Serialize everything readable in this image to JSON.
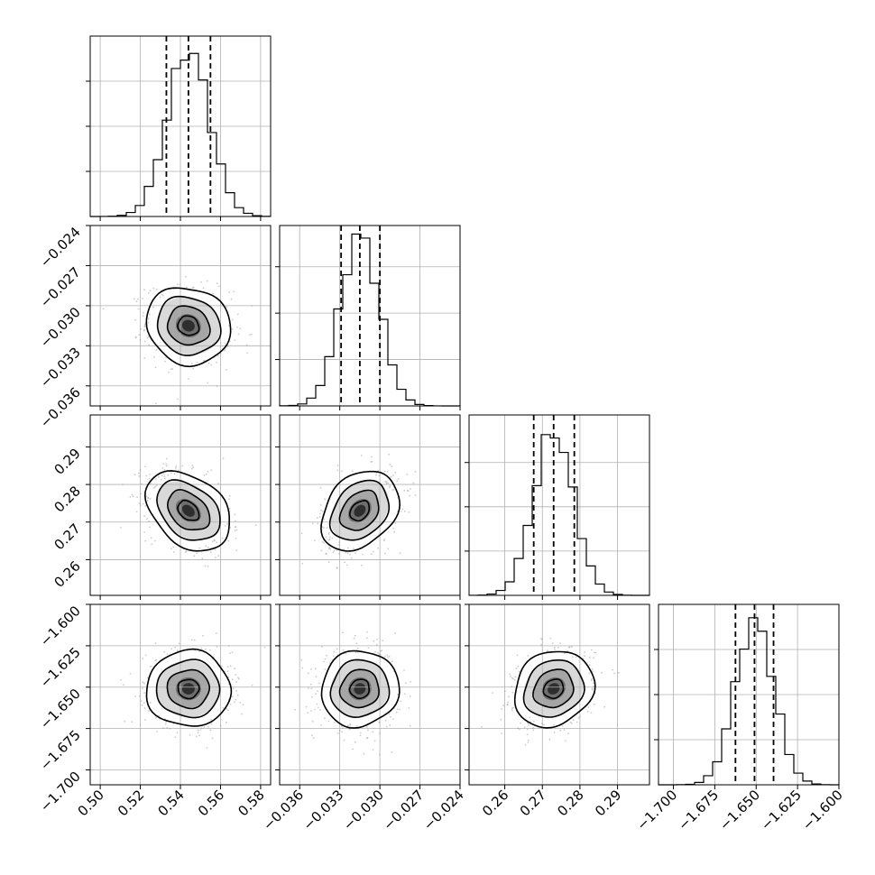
{
  "chart_data": {
    "type": "corner",
    "parameters": [
      {
        "range": [
          0.495,
          0.585
        ],
        "ticks": [
          "0.50",
          "0.52",
          "0.54",
          "0.56",
          "0.58"
        ],
        "tick_values": [
          0.5,
          0.52,
          0.54,
          0.56,
          0.58
        ],
        "quantiles": [
          0.533,
          0.544,
          0.555
        ],
        "mean": 0.544,
        "sigma": 0.0105,
        "hist_ymax": 1.08
      },
      {
        "range": [
          -0.0375,
          -0.024
        ],
        "ticks": [
          "−0.036",
          "−0.033",
          "−0.030",
          "−0.027",
          "−0.024"
        ],
        "tick_values": [
          -0.036,
          -0.033,
          -0.03,
          -0.027,
          -0.024
        ],
        "quantiles": [
          -0.0329,
          -0.0315,
          -0.03
        ],
        "mean": -0.0315,
        "sigma": 0.00145,
        "hist_ymax": 1.05
      },
      {
        "range": [
          0.2505,
          0.2985
        ],
        "ticks": [
          "0.26",
          "0.27",
          "0.28",
          "0.29"
        ],
        "tick_values": [
          0.26,
          0.27,
          0.28,
          0.29
        ],
        "quantiles": [
          0.2677,
          0.273,
          0.2785
        ],
        "mean": 0.273,
        "sigma": 0.0053,
        "hist_ymax": 1.1
      },
      {
        "range": [
          -1.709,
          -1.6
        ],
        "ticks": [
          "−1.700",
          "−1.675",
          "−1.650",
          "−1.625",
          "−1.600"
        ],
        "tick_values": [
          -1.7,
          -1.675,
          -1.65,
          -1.625,
          -1.6
        ],
        "quantiles": [
          -1.6625,
          -1.651,
          -1.6395
        ],
        "mean": -1.651,
        "sigma": 0.0115,
        "hist_ymax": 1.08
      }
    ],
    "correlations": [
      {
        "pair": [
          0,
          1
        ],
        "rho": -0.1
      },
      {
        "pair": [
          0,
          2
        ],
        "rho": -0.35
      },
      {
        "pair": [
          1,
          2
        ],
        "rho": 0.3
      },
      {
        "pair": [
          0,
          3
        ],
        "rho": 0.0
      },
      {
        "pair": [
          1,
          3
        ],
        "rho": 0.05
      },
      {
        "pair": [
          2,
          3
        ],
        "rho": 0.15
      }
    ],
    "contour_levels_sigma": [
      0.5,
      1.0,
      1.5,
      2.0
    ],
    "colors": {
      "line": "#000000",
      "grid": "#b0b0b0",
      "points": "#9a9a9a"
    }
  }
}
